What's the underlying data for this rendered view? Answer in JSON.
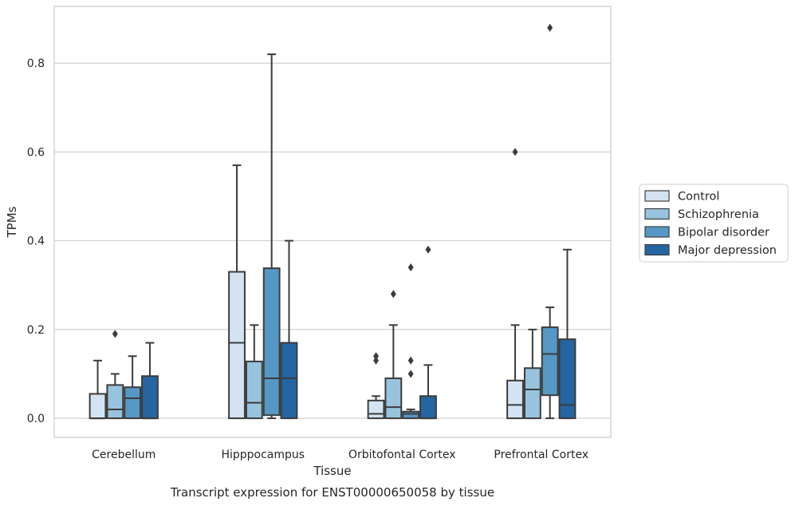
{
  "chart_data": {
    "type": "box",
    "title": "",
    "caption": "Transcript expression for ENST00000650058 by tissue",
    "xlabel": "Tissue",
    "ylabel": "TPMs",
    "ylim": [
      -0.043,
      0.928
    ],
    "yticks": [
      "0.0",
      "0.2",
      "0.4",
      "0.6",
      "0.8"
    ],
    "grid": true,
    "legend_position": "right",
    "categories": [
      "Cerebellum",
      "Hipppocampus",
      "Orbitofontal Cortex",
      "Prefrontal Cortex"
    ],
    "series": [
      {
        "name": "Control",
        "color": "#d4e3f2",
        "boxes": [
          {
            "min": 0.0,
            "q1": 0.0,
            "median": 0.0,
            "q3": 0.055,
            "max": 0.13,
            "outliers": []
          },
          {
            "min": 0.0,
            "q1": 0.0,
            "median": 0.17,
            "q3": 0.33,
            "max": 0.57,
            "outliers": []
          },
          {
            "min": 0.0,
            "q1": 0.0,
            "median": 0.01,
            "q3": 0.04,
            "max": 0.05,
            "outliers": [
              0.13,
              0.14
            ]
          },
          {
            "min": 0.0,
            "q1": 0.0,
            "median": 0.03,
            "q3": 0.085,
            "max": 0.21,
            "outliers": [
              0.6
            ]
          }
        ]
      },
      {
        "name": "Schizophrenia",
        "color": "#98c3de",
        "boxes": [
          {
            "min": 0.0,
            "q1": 0.0,
            "median": 0.02,
            "q3": 0.075,
            "max": 0.1,
            "outliers": [
              0.19
            ]
          },
          {
            "min": 0.0,
            "q1": 0.0,
            "median": 0.035,
            "q3": 0.128,
            "max": 0.21,
            "outliers": []
          },
          {
            "min": 0.0,
            "q1": 0.0,
            "median": 0.025,
            "q3": 0.09,
            "max": 0.21,
            "outliers": [
              0.28
            ]
          },
          {
            "min": 0.0,
            "q1": 0.0,
            "median": 0.065,
            "q3": 0.113,
            "max": 0.2,
            "outliers": []
          }
        ]
      },
      {
        "name": "Bipolar disorder",
        "color": "#5598c5",
        "boxes": [
          {
            "min": 0.0,
            "q1": 0.0,
            "median": 0.045,
            "q3": 0.07,
            "max": 0.14,
            "outliers": []
          },
          {
            "min": 0.0,
            "q1": 0.007,
            "median": 0.09,
            "q3": 0.338,
            "max": 0.82,
            "outliers": []
          },
          {
            "min": 0.0,
            "q1": 0.0,
            "median": 0.01,
            "q3": 0.015,
            "max": 0.02,
            "outliers": [
              0.1,
              0.13,
              0.34
            ]
          },
          {
            "min": 0.0,
            "q1": 0.052,
            "median": 0.145,
            "q3": 0.205,
            "max": 0.25,
            "outliers": [
              0.88
            ]
          }
        ]
      },
      {
        "name": "Major depression",
        "color": "#2565a2",
        "boxes": [
          {
            "min": 0.0,
            "q1": 0.0,
            "median": 0.0,
            "q3": 0.095,
            "max": 0.17,
            "outliers": []
          },
          {
            "min": 0.0,
            "q1": 0.0,
            "median": 0.09,
            "q3": 0.17,
            "max": 0.4,
            "outliers": []
          },
          {
            "min": 0.0,
            "q1": 0.0,
            "median": 0.0,
            "q3": 0.05,
            "max": 0.12,
            "outliers": [
              0.38
            ]
          },
          {
            "min": 0.0,
            "q1": 0.0,
            "median": 0.03,
            "q3": 0.178,
            "max": 0.38,
            "outliers": []
          }
        ]
      }
    ]
  }
}
